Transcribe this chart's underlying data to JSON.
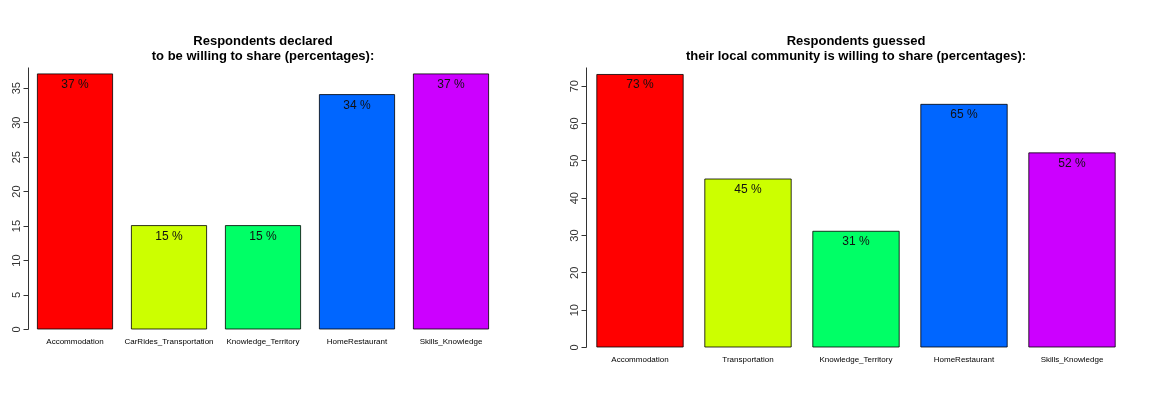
{
  "chart_data": [
    {
      "type": "bar",
      "title": "Respondents declared\nto be willing to share (percentages):",
      "categories": [
        "Accommodation",
        "CarRides_Transportation",
        "Knowledge_Territory",
        "HomeRestaurant",
        "Skills_Knowledge"
      ],
      "values": [
        37,
        15,
        15,
        34,
        37
      ],
      "colors": [
        "#ff0000",
        "#ccff00",
        "#00ff66",
        "#0066ff",
        "#cc00ff"
      ],
      "value_labels": [
        "37 %",
        "15 %",
        "15 %",
        "34 %",
        "37 %"
      ],
      "ylim": [
        0,
        38
      ],
      "yticks": [
        0,
        5,
        10,
        15,
        20,
        25,
        30,
        35
      ],
      "grid": false
    },
    {
      "type": "bar",
      "title": "Respondents guessed\ntheir local community is willing to share (percentages):",
      "categories": [
        "Accommodation",
        "Transportation",
        "Knowledge_Territory",
        "HomeRestaurant",
        "Skills_Knowledge"
      ],
      "values": [
        73,
        45,
        31,
        65,
        52
      ],
      "colors": [
        "#ff0000",
        "#ccff00",
        "#00ff66",
        "#0066ff",
        "#cc00ff"
      ],
      "value_labels": [
        "73 %",
        "45 %",
        "31 %",
        "65 %",
        "52 %"
      ],
      "ylim": [
        0,
        75
      ],
      "yticks": [
        0,
        10,
        20,
        30,
        40,
        50,
        60,
        70
      ],
      "grid": false
    }
  ]
}
